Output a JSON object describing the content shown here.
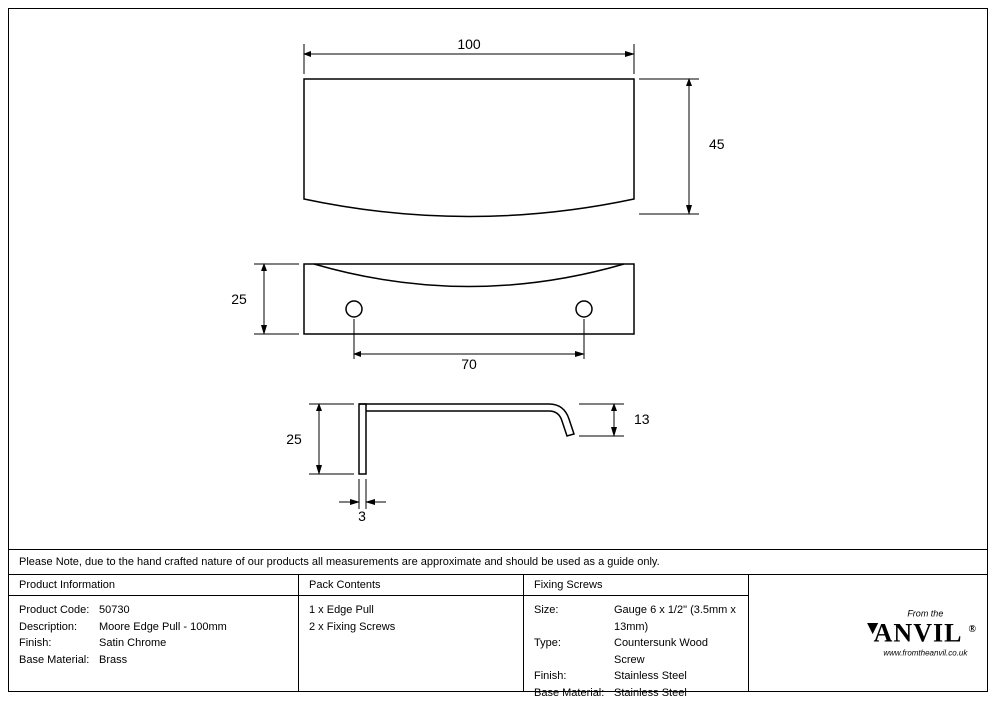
{
  "drawing": {
    "dimensions": {
      "width_top": "100",
      "height_top": "45",
      "bottom_span": "70",
      "bottom_height": "25",
      "profile_height": "25",
      "profile_lip": "13",
      "profile_thick": "3"
    },
    "stroke": "#000000",
    "fill": "#ffffff",
    "line_width": 1.5,
    "thin_line_width": 1
  },
  "note": "Please Note, due to the hand crafted nature of our products all measurements are approximate and should be used as a guide only.",
  "columns": {
    "product": {
      "header": "Product Information",
      "rows": [
        {
          "label": "Product Code:",
          "value": "50730"
        },
        {
          "label": "Description:",
          "value": "Moore Edge Pull - 100mm"
        },
        {
          "label": "Finish:",
          "value": "Satin Chrome"
        },
        {
          "label": "Base Material:",
          "value": "Brass"
        }
      ]
    },
    "pack": {
      "header": "Pack Contents",
      "rows": [
        {
          "value": "1 x Edge Pull"
        },
        {
          "value": "2 x Fixing Screws"
        }
      ]
    },
    "fixing": {
      "header": "Fixing Screws",
      "rows": [
        {
          "label": "Size:",
          "value": "Gauge 6 x 1/2\" (3.5mm x 13mm)"
        },
        {
          "label": "Type:",
          "value": "Countersunk Wood Screw"
        },
        {
          "label": "Finish:",
          "value": "Stainless Steel"
        },
        {
          "label": "Base Material:",
          "value": "Stainless Steel"
        }
      ]
    }
  },
  "logo": {
    "from": "From the",
    "main": "ANVIL",
    "reg": "®",
    "url": "www.fromtheanvil.co.uk"
  }
}
